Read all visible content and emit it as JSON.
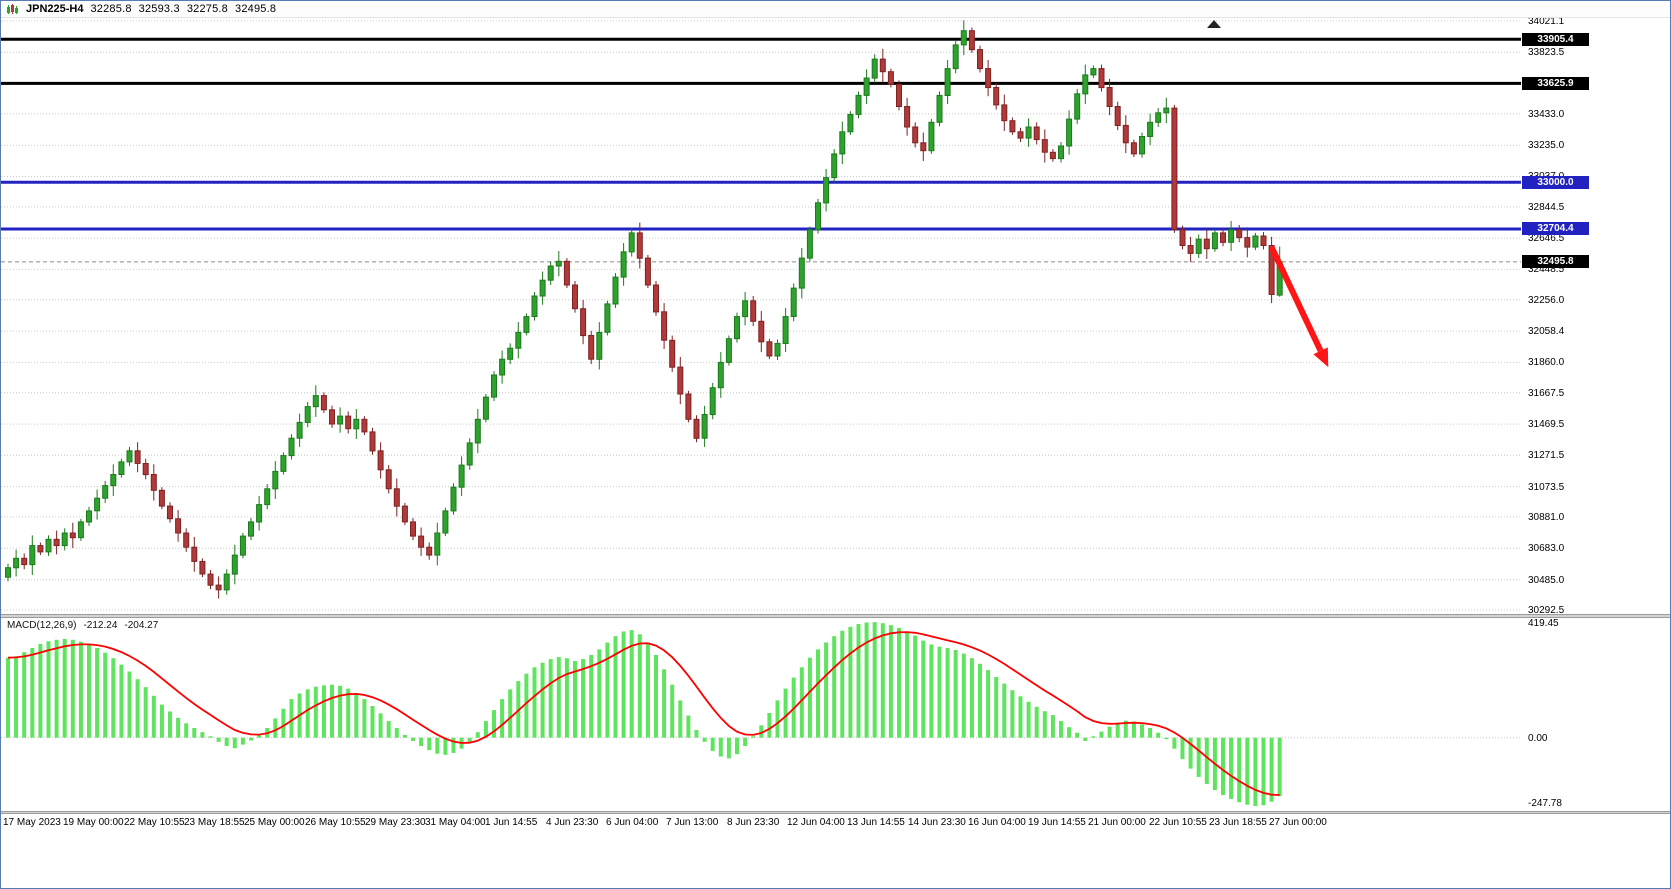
{
  "title_bar": {
    "icon": "candlestick-chart-icon",
    "symbol_period": "JPN225-H4",
    "quote_open": "32285.8",
    "quote_high": "32593.3",
    "quote_low": "32275.8",
    "quote_close": "32495.8"
  },
  "chart_data": {
    "type": "candlestick",
    "symbol": "JPN225",
    "timeframe": "H4",
    "y_max": 34021.1,
    "y_min": 30292.5,
    "y_ticks": [
      34021.1,
      33823.5,
      33433.0,
      33235.0,
      33037.0,
      32844.5,
      32646.5,
      32448.5,
      32256.0,
      32058.4,
      31860.0,
      31667.5,
      31469.5,
      31271.5,
      31073.5,
      30881.0,
      30683.0,
      30485.0,
      30292.5
    ],
    "x_tick_labels": [
      "17 May 2023",
      "19 May 00:00",
      "22 May 10:55",
      "23 May 18:55",
      "25 May 00:00",
      "26 May 10:55",
      "29 May 23:30",
      "31 May 04:00",
      "1 Jun 14:55",
      "4 Jun 23:30",
      "6 Jun 04:00",
      "7 Jun 13:00",
      "8 Jun 23:30",
      "12 Jun 04:00",
      "13 Jun 14:55",
      "14 Jun 23:30",
      "16 Jun 04:00",
      "19 Jun 14:55",
      "21 Jun 00:00",
      "22 Jun 10:55",
      "23 Jun 18:55",
      "27 Jun 00:00"
    ],
    "first_open": 30500,
    "closes": [
      30560,
      30620,
      30580,
      30700,
      30660,
      30740,
      30700,
      30780,
      30750,
      30850,
      30920,
      31000,
      31080,
      31150,
      31230,
      31300,
      31220,
      31150,
      31050,
      30950,
      30870,
      30780,
      30690,
      30600,
      30520,
      30450,
      30420,
      30520,
      30640,
      30760,
      30850,
      30960,
      31060,
      31170,
      31270,
      31380,
      31480,
      31580,
      31650,
      31560,
      31470,
      31520,
      31440,
      31500,
      31420,
      31300,
      31180,
      31060,
      30950,
      30850,
      30760,
      30690,
      30640,
      30780,
      30920,
      31070,
      31210,
      31350,
      31500,
      31640,
      31780,
      31880,
      31950,
      32050,
      32150,
      32280,
      32380,
      32470,
      32500,
      32350,
      32200,
      32030,
      31880,
      32050,
      32230,
      32400,
      32560,
      32680,
      32520,
      32350,
      32180,
      32000,
      31830,
      31660,
      31500,
      31380,
      31530,
      31700,
      31860,
      32010,
      32150,
      32250,
      32120,
      31990,
      31900,
      31980,
      32150,
      32330,
      32520,
      32700,
      32870,
      33030,
      33180,
      33320,
      33430,
      33550,
      33660,
      33780,
      33700,
      33620,
      33480,
      33350,
      33250,
      33200,
      33380,
      33550,
      33720,
      33870,
      33960,
      33840,
      33720,
      33600,
      33490,
      33390,
      33320,
      33280,
      33350,
      33270,
      33190,
      33150,
      33230,
      33400,
      33560,
      33680,
      33720,
      33600,
      33480,
      33360,
      33250,
      33180,
      33290,
      33380,
      33440,
      33470,
      32700,
      32600,
      32550,
      32640,
      32580,
      32680,
      32620,
      32700,
      32650,
      32590,
      32660,
      32600,
      32290,
      32495.8
    ],
    "last_bar": {
      "open": 32285.8,
      "high": 32593.3,
      "low": 32275.8,
      "close": 32495.8
    },
    "levels": [
      {
        "price": 33905.4,
        "color": "#000000",
        "badge_color": "#000000"
      },
      {
        "price": 33625.9,
        "color": "#000000",
        "badge_color": "#000000"
      },
      {
        "price": 33000.0,
        "color": "#2222C0",
        "badge_color": "#2222C0"
      },
      {
        "price": 32704.4,
        "color": "#2222C0",
        "badge_color": "#2222C0"
      }
    ],
    "current_price": 32495.8,
    "annotation_arrow": {
      "from_bar": 156,
      "from_price": 32590,
      "to_bar": 163,
      "to_price": 31830,
      "color": "#FF1515"
    },
    "macd": {
      "label": "MACD(12,26,9)",
      "value_main": "-212.24",
      "value_signal": "-204.27",
      "axis_max": 419.45,
      "axis_zero": "0.00",
      "axis_min": -247.78,
      "signal_period": 9,
      "histogram_color": "#5FE45F",
      "signal_color": "#FF0000",
      "histogram": [
        290,
        295,
        310,
        325,
        340,
        350,
        355,
        358,
        355,
        348,
        338,
        325,
        308,
        288,
        265,
        240,
        212,
        183,
        152,
        120,
        95,
        72,
        52,
        35,
        20,
        5,
        -15,
        -30,
        -38,
        -25,
        -10,
        8,
        35,
        70,
        105,
        140,
        160,
        175,
        185,
        190,
        192,
        188,
        178,
        162,
        140,
        115,
        88,
        60,
        35,
        10,
        -12,
        -30,
        -45,
        -58,
        -62,
        -55,
        -40,
        -15,
        20,
        60,
        100,
        140,
        175,
        205,
        232,
        255,
        272,
        285,
        292,
        288,
        278,
        285,
        300,
        320,
        345,
        368,
        385,
        390,
        375,
        345,
        300,
        248,
        192,
        135,
        80,
        28,
        -15,
        -48,
        -68,
        -75,
        -60,
        -30,
        5,
        45,
        90,
        135,
        178,
        218,
        255,
        290,
        320,
        345,
        368,
        388,
        402,
        412,
        418,
        419,
        415,
        408,
        398,
        385,
        370,
        352,
        338,
        330,
        325,
        318,
        305,
        288,
        268,
        245,
        220,
        196,
        172,
        150,
        130,
        112,
        96,
        82,
        60,
        38,
        18,
        -12,
        5,
        22,
        40,
        55,
        62,
        58,
        48,
        35,
        18,
        -5,
        -40,
        -78,
        -112,
        -142,
        -168,
        -190,
        -208,
        -222,
        -234,
        -243,
        -248,
        -245,
        -232,
        -212.24
      ]
    }
  },
  "colors": {
    "up": "#2FA12F",
    "up_border": "#1C7A1C",
    "down": "#B03A3A",
    "down_border": "#7E2222",
    "grid": "#C9C9C9",
    "axis_text": "#000000",
    "background": "#FFFFFF",
    "current_price_line": "#8A8A8A"
  }
}
